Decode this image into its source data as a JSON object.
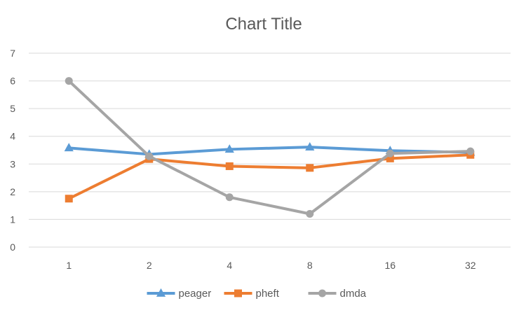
{
  "chart_data": {
    "type": "line",
    "title": "Chart Title",
    "xlabel": "",
    "ylabel": "",
    "categories": [
      "1",
      "2",
      "4",
      "8",
      "16",
      "32"
    ],
    "ylim": [
      0,
      7
    ],
    "yticks": [
      0,
      1,
      2,
      3,
      4,
      5,
      6,
      7
    ],
    "grid": true,
    "legend_position": "bottom",
    "series": [
      {
        "name": "peager",
        "color": "#5b9bd5",
        "marker": "triangle",
        "values": [
          3.58,
          3.35,
          3.53,
          3.61,
          3.48,
          3.42
        ]
      },
      {
        "name": "pheft",
        "color": "#ed7d31",
        "marker": "square",
        "values": [
          1.75,
          3.18,
          2.92,
          2.86,
          3.2,
          3.33
        ]
      },
      {
        "name": "dmda",
        "color": "#a5a5a5",
        "marker": "circle",
        "values": [
          6.0,
          3.28,
          1.8,
          1.2,
          3.38,
          3.46
        ]
      }
    ]
  }
}
